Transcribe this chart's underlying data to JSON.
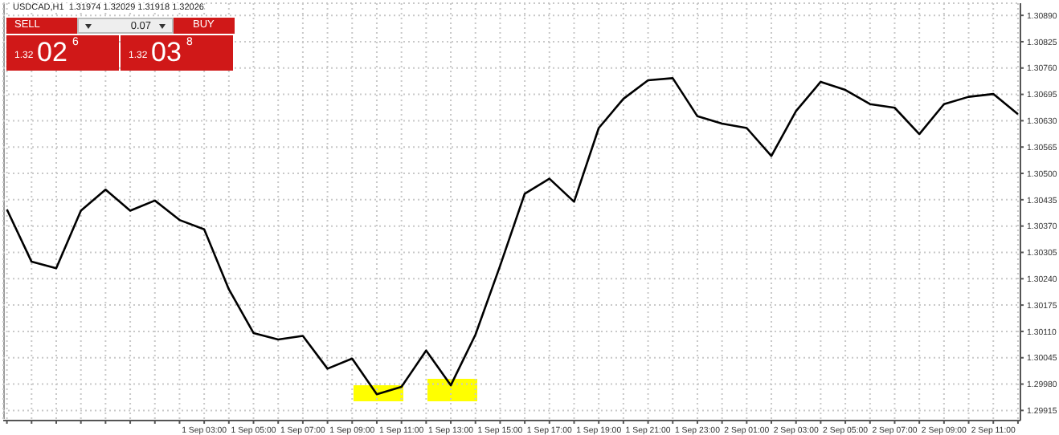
{
  "chart_data": {
    "type": "line",
    "title": "USDCAD,H1  1.31974 1.32029 1.31918 1.32026",
    "annotations": [
      "SELL",
      "0.07",
      "BUY",
      "1.32",
      "02",
      "6",
      "1.32",
      "03",
      "8"
    ],
    "categories": [
      null,
      null,
      null,
      null,
      null,
      null,
      null,
      null,
      "1 Sep 03:00",
      null,
      "1 Sep 05:00",
      null,
      "1 Sep 07:00",
      null,
      "1 Sep 09:00",
      null,
      "1 Sep 11:00",
      null,
      "1 Sep 13:00",
      null,
      "1 Sep 15:00",
      null,
      "1 Sep 17:00",
      null,
      "1 Sep 19:00",
      null,
      "1 Sep 21:00",
      null,
      "1 Sep 23:00",
      null,
      "2 Sep 01:00",
      null,
      "2 Sep 03:00",
      null,
      "2 Sep 05:00",
      null,
      "2 Sep 07:00",
      null,
      "2 Sep 09:00",
      null,
      "2 Sep 11:00",
      null
    ],
    "series": [
      {
        "color": "#000000",
        "values": [
          1.30411,
          1.30282,
          1.30266,
          1.30408,
          1.3046,
          1.30408,
          1.30433,
          1.30385,
          1.30362,
          1.30214,
          1.30106,
          1.3009,
          1.30099,
          1.30018,
          1.30043,
          1.29955,
          1.29973,
          1.30063,
          1.29977,
          1.30102,
          1.30272,
          1.3045,
          1.30487,
          1.3043,
          1.30612,
          1.30684,
          1.3073,
          1.30735,
          1.30641,
          1.30623,
          1.30612,
          1.30543,
          1.30654,
          1.30726,
          1.30706,
          1.30671,
          1.30662,
          1.30597,
          1.30671,
          1.30689,
          1.30696,
          1.30646
        ]
      }
    ],
    "ylim": [
      1.2989,
      1.3092
    ],
    "yticks": [
      1.29915,
      {
        "value": 1.2998,
        "label": "1.29980"
      },
      1.30045,
      {
        "value": 1.3011,
        "label": "1.30110"
      },
      1.30175,
      {
        "value": 1.3024,
        "label": "1.30240"
      },
      1.30305,
      {
        "value": 1.3037,
        "label": "1.30370"
      },
      1.30435,
      {
        "value": 1.305,
        "label": "1.30500"
      },
      1.30565,
      {
        "value": 1.3063,
        "label": "1.30630"
      },
      1.30695,
      {
        "value": 1.3076,
        "label": "1.30760"
      },
      1.30825,
      {
        "value": 1.3089,
        "label": "1.30890"
      }
    ],
    "grid": true,
    "marker": "none",
    "line_style": "solid"
  }
}
